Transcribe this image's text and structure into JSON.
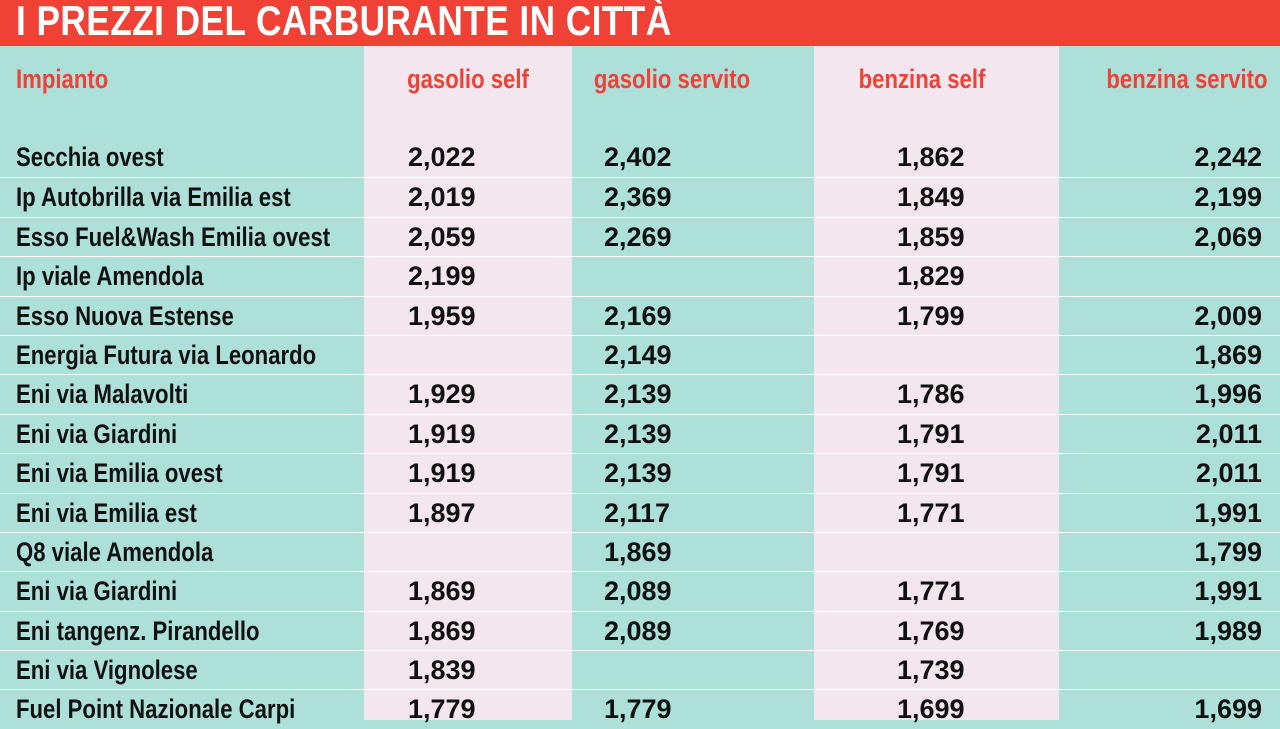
{
  "title": "I PREZZI DEL CARBURANTE IN CITTÀ",
  "headers": [
    "Impianto",
    "gasolio self",
    "gasolio servito",
    "benzina self",
    "benzina servito"
  ],
  "rows": [
    {
      "name": "Secchia ovest",
      "gasolio_self": "2,022",
      "gasolio_servito": "2,402",
      "benzina_self": "1,862",
      "benzina_servito": "2,242"
    },
    {
      "name": "Ip Autobrilla via Emilia est",
      "gasolio_self": "2,019",
      "gasolio_servito": "2,369",
      "benzina_self": "1,849",
      "benzina_servito": "2,199"
    },
    {
      "name": "Esso Fuel&Wash Emilia ovest",
      "gasolio_self": "2,059",
      "gasolio_servito": "2,269",
      "benzina_self": "1,859",
      "benzina_servito": "2,069"
    },
    {
      "name": "Ip viale Amendola",
      "gasolio_self": "2,199",
      "gasolio_servito": "",
      "benzina_self": "1,829",
      "benzina_servito": ""
    },
    {
      "name": "Esso Nuova Estense",
      "gasolio_self": "1,959",
      "gasolio_servito": "2,169",
      "benzina_self": "1,799",
      "benzina_servito": "2,009"
    },
    {
      "name": "Energia Futura via Leonardo",
      "gasolio_self": "",
      "gasolio_servito": "2,149",
      "benzina_self": "",
      "benzina_servito": "1,869"
    },
    {
      "name": "Eni via  Malavolti",
      "gasolio_self": "1,929",
      "gasolio_servito": "2,139",
      "benzina_self": "1,786",
      "benzina_servito": "1,996"
    },
    {
      "name": "Eni via Giardini",
      "gasolio_self": "1,919",
      "gasolio_servito": "2,139",
      "benzina_self": "1,791",
      "benzina_servito": "2,011"
    },
    {
      "name": "Eni via Emilia ovest",
      "gasolio_self": "1,919",
      "gasolio_servito": "2,139",
      "benzina_self": "1,791",
      "benzina_servito": "2,011"
    },
    {
      "name": "Eni via Emilia est",
      "gasolio_self": "1,897",
      "gasolio_servito": "2,117",
      "benzina_self": "1,771",
      "benzina_servito": "1,991"
    },
    {
      "name": "Q8 viale Amendola",
      "gasolio_self": "",
      "gasolio_servito": "1,869",
      "benzina_self": "",
      "benzina_servito": "1,799"
    },
    {
      "name": "Eni via Giardini",
      "gasolio_self": "1,869",
      "gasolio_servito": "2,089",
      "benzina_self": "1,771",
      "benzina_servito": "1,991"
    },
    {
      "name": "Eni tangenz. Pirandello",
      "gasolio_self": "1,869",
      "gasolio_servito": "2,089",
      "benzina_self": "1,769",
      "benzina_servito": "1,989"
    },
    {
      "name": "Eni  via Vignolese",
      "gasolio_self": "1,839",
      "gasolio_servito": "",
      "benzina_self": "1,739",
      "benzina_servito": ""
    },
    {
      "name": "Fuel Point Nazionale Carpi",
      "gasolio_self": "1,779",
      "gasolio_servito": "1,779",
      "benzina_self": "1,699",
      "benzina_servito": "1,699"
    }
  ]
}
